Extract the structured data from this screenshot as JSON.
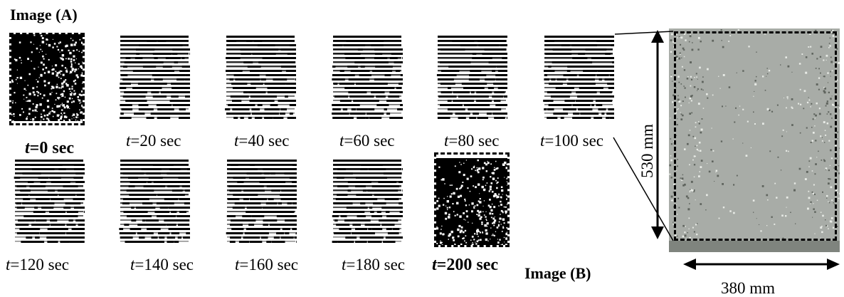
{
  "headings": {
    "image_a": "Image (A)",
    "image_b": "Image (B)"
  },
  "frames": [
    {
      "var": "t",
      "value": "=0 sec",
      "kind": "image",
      "bold": true
    },
    {
      "var": "t",
      "value": "=20 sec",
      "kind": "stripes"
    },
    {
      "var": "t",
      "value": "=40 sec",
      "kind": "stripes"
    },
    {
      "var": "t",
      "value": "=60 sec",
      "kind": "stripes"
    },
    {
      "var": "t",
      "value": "=80 sec",
      "kind": "stripes"
    },
    {
      "var": "t",
      "value": "=100 sec",
      "kind": "stripes"
    },
    {
      "var": "t",
      "value": "=120 sec",
      "kind": "stripes"
    },
    {
      "var": "t",
      "value": "=140 sec",
      "kind": "stripes"
    },
    {
      "var": "t",
      "value": "=160 sec",
      "kind": "stripes"
    },
    {
      "var": "t",
      "value": "=180 sec",
      "kind": "stripes"
    },
    {
      "var": "t",
      "value": "=200 sec",
      "kind": "image",
      "bold": true
    }
  ],
  "dimensions": {
    "height": "530 mm",
    "width": "380 mm"
  },
  "colors": {
    "stripe": "#000000",
    "dashed_border": "#000000",
    "photo_bg": "#a8aca7",
    "speckle": "#e8ebe6"
  }
}
